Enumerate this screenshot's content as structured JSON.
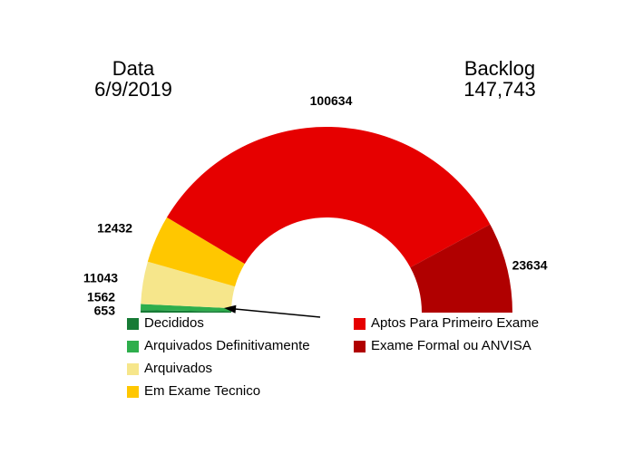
{
  "header": {
    "date_label": "Data",
    "date_value": "6/9/2019",
    "backlog_label": "Backlog",
    "backlog_value": "147,743"
  },
  "chart_data": {
    "type": "pie",
    "variant": "half-donut-gauge",
    "direction": "left-to-right over the top (180 to 0 degrees)",
    "total_of_segments": 149958,
    "backlog_total_shown": "147,743",
    "segments": [
      {
        "label": "Decididos",
        "value": 653,
        "color": "#177B36"
      },
      {
        "label": "Arquivados Definitivamente",
        "value": 1562,
        "color": "#2EAE4C"
      },
      {
        "label": "Arquivados",
        "value": 11043,
        "color": "#F6E68B"
      },
      {
        "label": "Em Exame Tecnico",
        "value": 12432,
        "color": "#FFC700"
      },
      {
        "label": "Aptos Para Primeiro Exame",
        "value": 100634,
        "color": "#E60000"
      },
      {
        "label": "Exame Formal ou ANVISA",
        "value": 23634,
        "color": "#B00000"
      }
    ],
    "legend_columns": [
      [
        0,
        1,
        2,
        3
      ],
      [
        4,
        5
      ]
    ],
    "annotations": [
      {
        "type": "arrow",
        "points_to": "thin green segments at lower-left (Decididos / Arquivados Definitivamente)"
      }
    ]
  }
}
